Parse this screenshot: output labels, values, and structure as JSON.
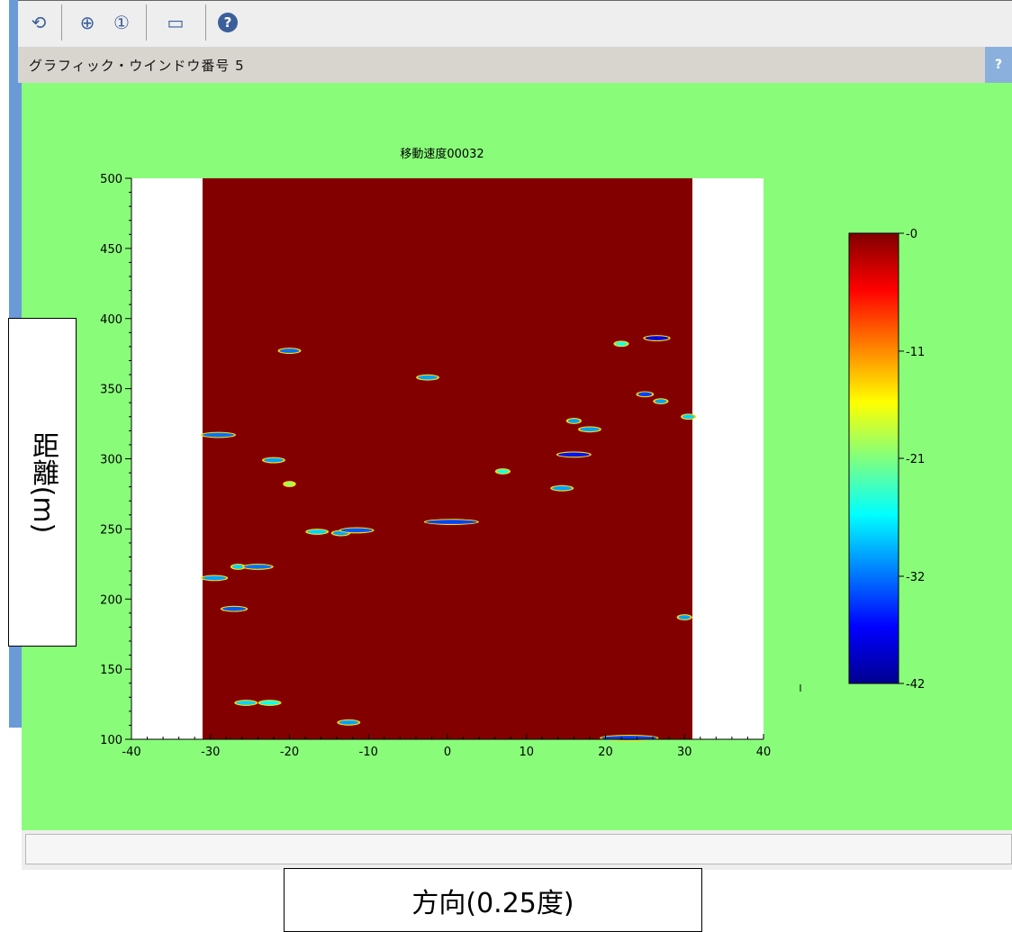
{
  "window": {
    "title": "グラフィック・ウインドウ番号 5",
    "help_glyph": "?"
  },
  "toolbar": {
    "items": [
      {
        "icon": "rotate-icon",
        "glyph": "⟲"
      },
      {
        "icon": "zoom-in-icon",
        "glyph": "⊕"
      },
      {
        "icon": "zoom-reset-icon",
        "glyph": "①"
      },
      {
        "icon": "datatip-icon",
        "glyph": "▭"
      },
      {
        "icon": "help-icon",
        "glyph": "?"
      }
    ]
  },
  "colors": {
    "canvas_bg": "#89fd7a",
    "plot_fill": "#820000",
    "window_border": "#6a9bd8"
  },
  "chart_data": {
    "type": "heatmap",
    "title": "移動速度00032",
    "xlabel": "方向(0.25度)",
    "ylabel": "距離(m)",
    "xlim": [
      -40,
      40
    ],
    "ylim": [
      100,
      500
    ],
    "data_xrange": [
      -31,
      31
    ],
    "x_ticks": [
      -40,
      -30,
      -20,
      -10,
      0,
      10,
      20,
      30,
      40
    ],
    "y_ticks": [
      100,
      150,
      200,
      250,
      300,
      350,
      400,
      450,
      500
    ],
    "colorbar": {
      "ticks": [
        "-0",
        "-11",
        "-21",
        "-32",
        "-42"
      ],
      "values": [
        0,
        -11,
        -21,
        -32,
        -42
      ],
      "range": [
        -42,
        0
      ],
      "colormap": "jet"
    },
    "background_value": 0,
    "features": [
      {
        "x": -20,
        "y": 377,
        "w": 2.5,
        "v": -32
      },
      {
        "x": -2.5,
        "y": 358,
        "w": 2.5,
        "v": -30
      },
      {
        "x": 22,
        "y": 382,
        "w": 1.5,
        "v": -25
      },
      {
        "x": 26.5,
        "y": 386,
        "w": 3,
        "v": -38
      },
      {
        "x": 25,
        "y": 346,
        "w": 1.8,
        "v": -34
      },
      {
        "x": 27,
        "y": 341,
        "w": 1.5,
        "v": -30
      },
      {
        "x": 30.5,
        "y": 330,
        "w": 1.5,
        "v": -28
      },
      {
        "x": 16,
        "y": 327,
        "w": 1.5,
        "v": -30
      },
      {
        "x": 18,
        "y": 321,
        "w": 2.5,
        "v": -30
      },
      {
        "x": -29,
        "y": 317,
        "w": 4,
        "v": -32
      },
      {
        "x": 16,
        "y": 303,
        "w": 4,
        "v": -36
      },
      {
        "x": -22,
        "y": 299,
        "w": 2.5,
        "v": -30
      },
      {
        "x": 7,
        "y": 291,
        "w": 1.5,
        "v": -25
      },
      {
        "x": 14.5,
        "y": 279,
        "w": 2.5,
        "v": -30
      },
      {
        "x": -20,
        "y": 282,
        "w": 1.2,
        "v": -20
      },
      {
        "x": 0.5,
        "y": 255,
        "w": 6.5,
        "v": -34
      },
      {
        "x": -16.5,
        "y": 248,
        "w": 2.5,
        "v": -28
      },
      {
        "x": -13.5,
        "y": 247,
        "w": 2,
        "v": -30
      },
      {
        "x": -11.5,
        "y": 249,
        "w": 4,
        "v": -33
      },
      {
        "x": -26.5,
        "y": 223,
        "w": 1.5,
        "v": -28
      },
      {
        "x": -24,
        "y": 223,
        "w": 3.5,
        "v": -32
      },
      {
        "x": -29.5,
        "y": 215,
        "w": 3,
        "v": -30
      },
      {
        "x": -27,
        "y": 193,
        "w": 3,
        "v": -33
      },
      {
        "x": 30,
        "y": 187,
        "w": 1.5,
        "v": -30
      },
      {
        "x": -25.5,
        "y": 126,
        "w": 2.5,
        "v": -28
      },
      {
        "x": -22.5,
        "y": 126,
        "w": 2.5,
        "v": -26
      },
      {
        "x": -12.5,
        "y": 112,
        "w": 2.5,
        "v": -30
      },
      {
        "x": 23,
        "y": 101,
        "w": 7,
        "v": -34
      }
    ]
  }
}
